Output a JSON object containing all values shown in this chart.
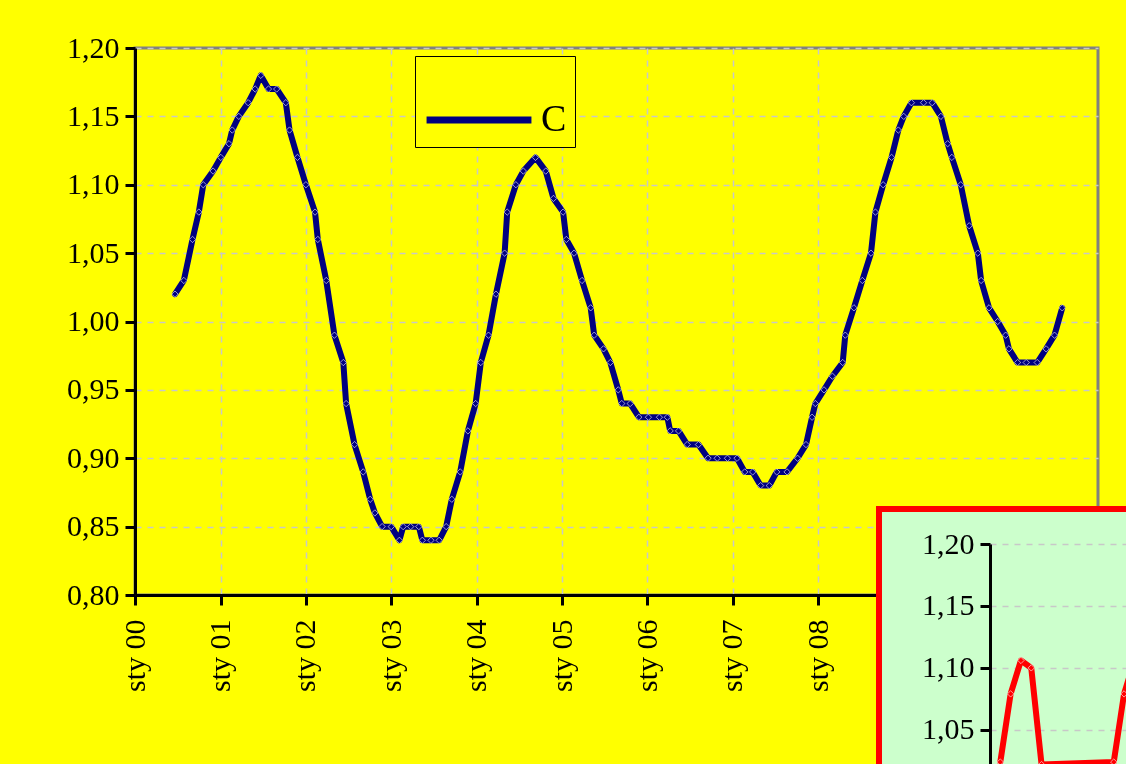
{
  "chart_data": [
    {
      "type": "line",
      "legend": "top",
      "marker": "diamond",
      "line_style": "solid",
      "grid": true,
      "x": [
        "2000-06-20",
        "2000-07-28",
        "2000-09-03",
        "2000-09-30",
        "2000-10-19",
        "2000-11-30",
        "2001-01-02",
        "2001-02-06",
        "2001-02-20",
        "2001-03-20",
        "2001-04-29",
        "2001-05-29",
        "2001-06-22",
        "2001-07-25",
        "2001-08-29",
        "2001-10-07",
        "2001-10-23",
        "2001-11-26",
        "2002-01-01",
        "2002-02-09",
        "2002-02-21",
        "2002-03-29",
        "2002-05-03",
        "2002-06-10",
        "2002-06-22",
        "2002-07-28",
        "2002-09-03",
        "2002-10-03",
        "2002-10-23",
        "2002-11-23",
        "2003-01-01",
        "2003-02-05",
        "2003-02-21",
        "2003-03-25",
        "2003-04-29",
        "2003-05-14",
        "2003-06-20",
        "2003-07-25",
        "2003-08-24",
        "2003-09-17",
        "2003-10-23",
        "2003-11-25",
        "2003-12-28",
        "2004-01-19",
        "2004-02-21",
        "2004-03-24",
        "2004-04-30",
        "2004-05-11",
        "2004-06-17",
        "2004-07-19",
        "2004-09-09",
        "2004-10-23",
        "2004-11-25",
        "2005-01-05",
        "2005-01-19",
        "2005-02-21",
        "2005-03-27",
        "2005-05-03",
        "2005-05-18",
        "2005-06-27",
        "2005-07-26",
        "2005-08-29",
        "2005-09-13",
        "2005-10-19",
        "2005-11-25",
        "2006-01-05",
        "2006-02-21",
        "2006-03-27",
        "2006-04-08",
        "2006-05-14",
        "2006-06-20",
        "2006-08-07",
        "2006-09-17",
        "2006-10-26",
        "2006-12-09",
        "2007-01-19",
        "2007-02-21",
        "2007-03-27",
        "2007-04-30",
        "2007-06-06",
        "2007-07-08",
        "2007-08-21",
        "2007-10-05",
        "2007-11-10",
        "2007-12-06",
        "2007-12-20",
        "2008-01-26",
        "2008-03-02",
        "2008-04-15",
        "2008-04-26",
        "2008-06-02",
        "2008-07-08",
        "2008-08-14",
        "2008-09-02",
        "2008-10-05",
        "2008-11-10",
        "2008-12-09",
        "2009-01-01",
        "2009-02-03",
        "2009-03-27",
        "2009-05-03",
        "2009-06-09",
        "2009-07-08",
        "2009-07-26",
        "2009-09-02",
        "2009-10-08",
        "2009-11-14",
        "2009-11-28",
        "2010-01-01",
        "2010-02-07",
        "2010-03-13",
        "2010-03-27",
        "2010-05-03",
        "2010-06-09",
        "2010-07-26",
        "2010-09-02",
        "2010-10-08",
        "2010-11-10"
      ],
      "series": [
        {
          "name": "C",
          "color": "#000080",
          "values": [
            1.02,
            1.03,
            1.06,
            1.08,
            1.1,
            1.11,
            1.12,
            1.13,
            1.14,
            1.15,
            1.16,
            1.17,
            1.18,
            1.17,
            1.17,
            1.16,
            1.14,
            1.12,
            1.1,
            1.08,
            1.06,
            1.03,
            0.99,
            0.97,
            0.94,
            0.91,
            0.89,
            0.87,
            0.86,
            0.85,
            0.85,
            0.84,
            0.85,
            0.85,
            0.85,
            0.84,
            0.84,
            0.84,
            0.85,
            0.87,
            0.89,
            0.92,
            0.94,
            0.97,
            0.99,
            1.02,
            1.05,
            1.08,
            1.1,
            1.11,
            1.12,
            1.11,
            1.09,
            1.08,
            1.06,
            1.05,
            1.03,
            1.01,
            0.99,
            0.98,
            0.97,
            0.95,
            0.94,
            0.94,
            0.93,
            0.93,
            0.93,
            0.93,
            0.92,
            0.92,
            0.91,
            0.91,
            0.9,
            0.9,
            0.9,
            0.9,
            0.89,
            0.89,
            0.88,
            0.88,
            0.89,
            0.89,
            0.9,
            0.91,
            0.93,
            0.94,
            0.95,
            0.96,
            0.97,
            0.99,
            1.01,
            1.03,
            1.05,
            1.08,
            1.1,
            1.12,
            1.14,
            1.15,
            1.16,
            1.16,
            1.16,
            1.15,
            1.13,
            1.12,
            1.1,
            1.07,
            1.05,
            1.03,
            1.01,
            1.0,
            0.99,
            0.98,
            0.97,
            0.97,
            0.97,
            0.98,
            0.99,
            1.01
          ]
        }
      ],
      "xlim": [
        "2000-01-01",
        "2011-04-12"
      ],
      "xticks": [
        {
          "value": "2000-01-01",
          "label": "sty 00"
        },
        {
          "value": "2001-01-01",
          "label": "sty 01"
        },
        {
          "value": "2002-01-01",
          "label": "sty 02"
        },
        {
          "value": "2003-01-01",
          "label": "sty 03"
        },
        {
          "value": "2004-01-01",
          "label": "sty 04"
        },
        {
          "value": "2005-01-01",
          "label": "sty 05"
        },
        {
          "value": "2006-01-01",
          "label": "sty 06"
        },
        {
          "value": "2007-01-01",
          "label": "sty 07"
        },
        {
          "value": "2008-01-01",
          "label": "sty 08"
        }
      ],
      "ylim": [
        0.8,
        1.2
      ],
      "yticks": [
        {
          "value": 0.8,
          "label": "0,80"
        },
        {
          "value": 0.85,
          "label": "0,85"
        },
        {
          "value": 0.9,
          "label": "0,90"
        },
        {
          "value": 0.95,
          "label": "0,95"
        },
        {
          "value": 1.0,
          "label": "1,00"
        },
        {
          "value": 1.05,
          "label": "1,05"
        },
        {
          "value": 1.1,
          "label": "1,10"
        },
        {
          "value": 1.15,
          "label": "1,15"
        },
        {
          "value": 1.2,
          "label": "1,20"
        }
      ]
    },
    {
      "type": "line",
      "marker": "diamond",
      "line_style": "solid",
      "grid": "y",
      "tick_labels": "y",
      "categories": [
        null,
        null,
        null,
        null,
        null,
        null,
        null,
        null,
        null,
        null,
        null,
        null,
        null,
        null,
        null
      ],
      "series": [
        {
          "color": "#ff0000",
          "values": [
            1.024,
            1.079,
            1.106,
            1.1,
            1.022,
            null,
            null,
            null,
            null,
            null,
            null,
            1.024,
            1.079,
            1.106,
            1.1
          ]
        }
      ],
      "ylim": [
        1.02,
        1.2
      ],
      "yticks": [
        {
          "value": 1.05,
          "label": "1,05"
        },
        {
          "value": 1.1,
          "label": "1,10"
        },
        {
          "value": 1.15,
          "label": "1,15"
        },
        {
          "value": 1.2,
          "label": "1,20"
        }
      ]
    }
  ]
}
